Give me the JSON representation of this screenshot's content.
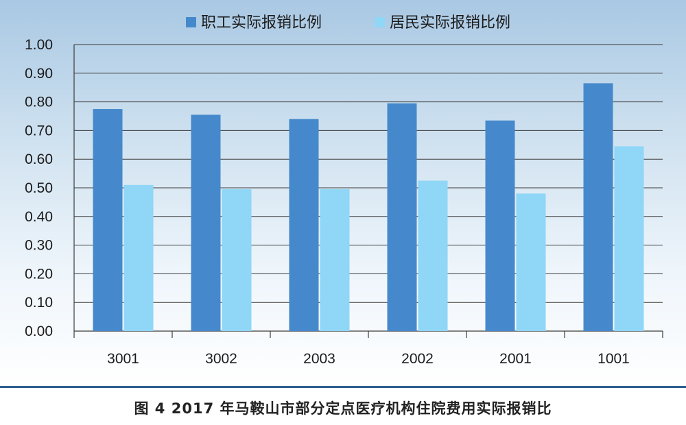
{
  "caption": "图 4  2017 年马鞍山市部分定点医疗机构住院费用实际报销比",
  "chart_data": {
    "type": "bar",
    "categories": [
      "3001",
      "3002",
      "2003",
      "2002",
      "2001",
      "1001"
    ],
    "series": [
      {
        "name": "职工实际报销比例",
        "color": "#4589cc",
        "values": [
          0.775,
          0.755,
          0.74,
          0.795,
          0.735,
          0.865
        ]
      },
      {
        "name": "居民实际报销比例",
        "color": "#8fd6f7",
        "values": [
          0.51,
          0.495,
          0.495,
          0.525,
          0.48,
          0.645
        ]
      }
    ],
    "yticks": [
      "0.00",
      "0.10",
      "0.20",
      "0.30",
      "0.40",
      "0.50",
      "0.60",
      "0.70",
      "0.80",
      "0.90",
      "1.00"
    ],
    "ylim": [
      0,
      1
    ],
    "grid": true,
    "legend_position": "top-center",
    "title": "",
    "xlabel": "",
    "ylabel": ""
  }
}
